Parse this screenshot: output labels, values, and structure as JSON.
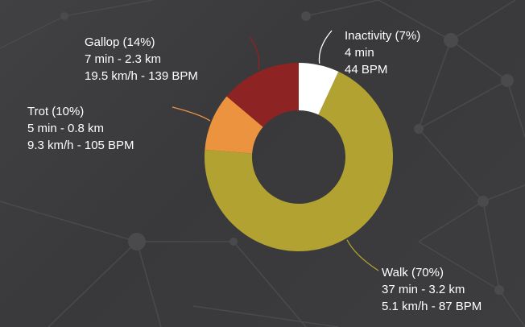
{
  "colors": {
    "background": "#3b3b3d",
    "text": "#ffffff",
    "walk": "#b1a232",
    "inactivity": "#ffffff",
    "gallop": "#8e2323",
    "trot": "#ec9340"
  },
  "chart_data": {
    "type": "pie",
    "donut": true,
    "slices": [
      {
        "key": "inactivity",
        "name": "Inactivity",
        "percent": 7,
        "title": "Inactivity (7%)",
        "line1": "4 min",
        "line2": "44 BPM",
        "color": "#ffffff"
      },
      {
        "key": "walk",
        "name": "Walk",
        "percent": 70,
        "title": "Walk (70%)",
        "line1": "37 min - 3.2 km",
        "line2": "5.1 km/h - 87 BPM",
        "color": "#b1a232"
      },
      {
        "key": "trot",
        "name": "Trot",
        "percent": 10,
        "title": "Trot (10%)",
        "line1": "5 min - 0.8 km",
        "line2": "9.3 km/h - 105 BPM",
        "color": "#ec9340"
      },
      {
        "key": "gallop",
        "name": "Gallop",
        "percent": 14,
        "title": "Gallop (14%)",
        "line1": "7 min - 2.3 km",
        "line2": "19.5 km/h - 139 BPM",
        "color": "#8e2323"
      }
    ]
  }
}
